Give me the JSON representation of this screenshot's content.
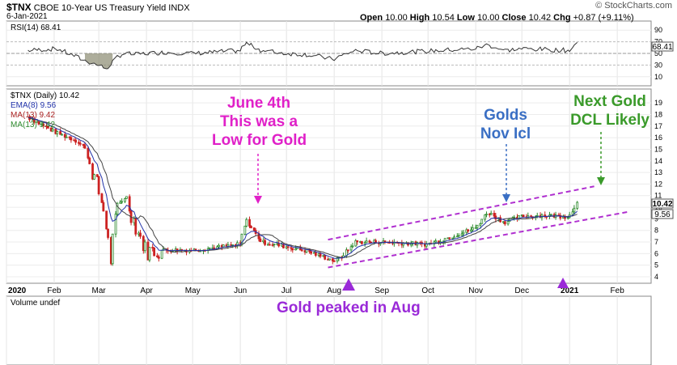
{
  "header": {
    "symbol": "$TNX",
    "name": "CBOE 10-Year US Treasury Yield",
    "exchange": "INDX",
    "date": "6-Jan-2021",
    "open_label": "Open",
    "open": "10.00",
    "high_label": "High",
    "high": "10.54",
    "low_label": "Low",
    "low": "10.00",
    "close_label": "Close",
    "close": "10.42",
    "chg_label": "Chg",
    "chg": "+0.87 (+9.11%)",
    "logo": "© StockCharts.com"
  },
  "rsi_pane": {
    "label": "RSI(14) 68.41",
    "ticks": [
      "90",
      "70",
      "50",
      "30",
      "10"
    ],
    "value_box": "68.41",
    "value": 68.41
  },
  "price_pane": {
    "legend_title": "$TNX (Daily) 10.42",
    "legend_ema": "EMA(8) 9.56",
    "legend_ma13a": "MA(13) 9.42",
    "legend_ma13b": "MA(13) 9.42",
    "price_box": "10.42",
    "ema_box": "9.56",
    "ticks": [
      "19",
      "18",
      "17",
      "16",
      "15",
      "14",
      "13",
      "12",
      "11",
      "10",
      "9",
      "8",
      "7",
      "6",
      "5",
      "4"
    ]
  },
  "volume_pane": {
    "label": "Volume undef"
  },
  "annotations": {
    "june": [
      "June 4th",
      "This was a",
      "Low for Gold"
    ],
    "golds": [
      "Golds",
      "Nov Icl"
    ],
    "next": [
      "Next Gold",
      "DCL Likely"
    ],
    "aug": "Gold peaked in Aug"
  },
  "colors": {
    "up": "#2e8b2e",
    "down": "#cc2222",
    "ema": "#2233aa",
    "ma": "#444444",
    "pink": "#e020c8",
    "blue": "#3a6fc4",
    "green": "#3a9a2a",
    "purple": "#9a2ad8",
    "channel": "#b030d0"
  },
  "chart_data": {
    "type": "line",
    "title": "$TNX CBOE 10-Year US Treasury Yield INDX",
    "x_tick_labels": [
      "2020",
      "Feb",
      "Mar",
      "Apr",
      "May",
      "Jun",
      "Jul",
      "Aug",
      "Sep",
      "Oct",
      "Nov",
      "Dec",
      "2021",
      "Feb"
    ],
    "y_range": [
      4,
      19.5
    ],
    "x": [
      "2020-01-15",
      "2020-02-03",
      "2020-02-15",
      "2020-02-21",
      "2020-03-01",
      "2020-03-05",
      "2020-03-09",
      "2020-03-13",
      "2020-03-18",
      "2020-03-25",
      "2020-04-01",
      "2020-04-15",
      "2020-05-01",
      "2020-05-15",
      "2020-06-01",
      "2020-06-05",
      "2020-06-15",
      "2020-07-01",
      "2020-07-15",
      "2020-08-01",
      "2020-08-05",
      "2020-08-15",
      "2020-09-01",
      "2020-09-15",
      "2020-10-01",
      "2020-10-15",
      "2020-11-01",
      "2020-11-09",
      "2020-11-20",
      "2020-12-01",
      "2020-12-15",
      "2021-01-01",
      "2021-01-06"
    ],
    "series": [
      {
        "name": "$TNX (Daily)",
        "values": [
          17.8,
          16.4,
          15.8,
          15.2,
          11.5,
          9.5,
          5.5,
          9.8,
          11.2,
          8.5,
          6.2,
          6.3,
          6.3,
          6.5,
          6.8,
          8.9,
          7.0,
          6.6,
          6.2,
          5.4,
          5.6,
          7.0,
          7.0,
          6.9,
          6.8,
          7.4,
          8.2,
          9.6,
          8.7,
          9.2,
          9.3,
          9.2,
          10.42
        ]
      }
    ],
    "rsi_values": [
      55,
      58,
      45,
      38,
      30,
      25,
      28,
      45,
      50,
      48,
      50,
      52,
      50,
      52,
      55,
      68,
      55,
      50,
      48,
      40,
      45,
      55,
      50,
      52,
      54,
      56,
      58,
      65,
      55,
      58,
      57,
      55,
      68.41
    ],
    "channel_upper": {
      "x": [
        "2020-07-28",
        "2021-01-17"
      ],
      "y": [
        7.2,
        11.8
      ]
    },
    "channel_lower": {
      "x": [
        "2020-07-28",
        "2021-02-08"
      ],
      "y": [
        4.8,
        9.6
      ]
    },
    "rsi_range": [
      0,
      100
    ],
    "ylabel": "",
    "xlabel": ""
  }
}
